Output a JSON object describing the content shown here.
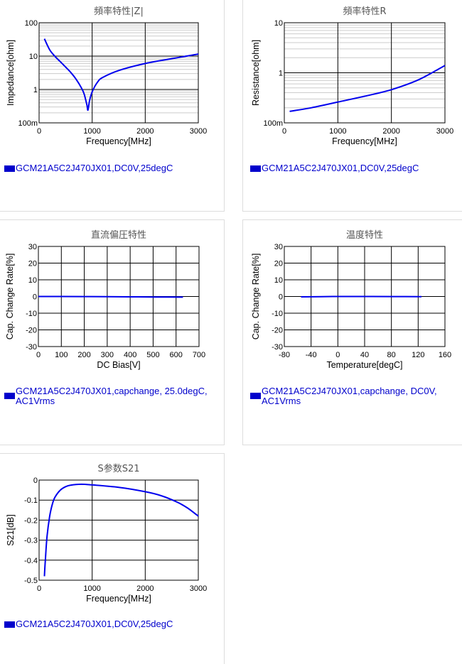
{
  "charts": [
    {
      "title": "頻率特性|Z|",
      "legend": "GCM21A5C2J470JX01,DC0V,25degC",
      "chart_data": {
        "type": "line",
        "log_y": true,
        "title": "頻率特性|Z|",
        "xlabel": "Frequency[MHz]",
        "ylabel": "Impedance[ohm]",
        "xlim": [
          0,
          3000
        ],
        "ylim": [
          0.1,
          100
        ],
        "xticks": [
          0,
          1000,
          2000,
          3000
        ],
        "xtick_labels": [
          "0",
          "1000",
          "2000",
          "3000"
        ],
        "yticks": [
          0.1,
          1,
          10,
          100
        ],
        "ytick_labels": [
          "100m",
          "1",
          "10",
          "100"
        ],
        "series": [
          {
            "name": "GCM21A5C2J470JX01,DC0V,25degC",
            "x": [
              100,
              200,
              300,
              400,
              500,
              600,
              700,
              800,
              850,
              900,
              920,
              950,
              1000,
              1100,
              1200,
              1500,
              2000,
              2500,
              3000
            ],
            "y": [
              33,
              15.5,
              9.8,
              6.8,
              4.7,
              3.2,
              2.0,
              1.1,
              0.72,
              0.35,
              0.24,
              0.45,
              0.85,
              1.65,
              2.3,
              3.7,
              6.0,
              8.4,
              11.5
            ]
          }
        ]
      }
    },
    {
      "title": "頻率特性R",
      "legend": "GCM21A5C2J470JX01,DC0V,25degC",
      "chart_data": {
        "type": "line",
        "log_y": true,
        "title": "頻率特性R",
        "xlabel": "Frequency[MHz]",
        "ylabel": "Resistance[ohm]",
        "xlim": [
          0,
          3000
        ],
        "ylim": [
          0.1,
          10
        ],
        "xticks": [
          0,
          1000,
          2000,
          3000
        ],
        "xtick_labels": [
          "0",
          "1000",
          "2000",
          "3000"
        ],
        "yticks": [
          0.1,
          1,
          10
        ],
        "ytick_labels": [
          "100m",
          "1",
          "10"
        ],
        "series": [
          {
            "name": "GCM21A5C2J470JX01,DC0V,25degC",
            "x": [
              100,
              500,
              1000,
              1500,
              2000,
              2500,
              3000
            ],
            "y": [
              0.17,
              0.2,
              0.26,
              0.34,
              0.46,
              0.72,
              1.4
            ]
          }
        ]
      }
    },
    {
      "title": "直流偏圧特性",
      "legend": "GCM21A5C2J470JX01,capchange, 25.0degC, AC1Vrms",
      "chart_data": {
        "type": "line",
        "log_y": false,
        "title": "直流偏圧特性",
        "xlabel": "DC Bias[V]",
        "ylabel": "Cap. Change Rate[%]",
        "xlim": [
          0,
          700
        ],
        "ylim": [
          -30,
          30
        ],
        "xticks": [
          0,
          100,
          200,
          300,
          400,
          500,
          600,
          700
        ],
        "xtick_labels": [
          "0",
          "100",
          "200",
          "300",
          "400",
          "500",
          "600",
          "700"
        ],
        "yticks": [
          -30,
          -20,
          -10,
          0,
          10,
          20,
          30
        ],
        "ytick_labels": [
          "-30",
          "-20",
          "-10",
          "0",
          "10",
          "20",
          "30"
        ],
        "series": [
          {
            "name": "GCM21A5C2J470JX01,capchange, 25.0degC, AC1Vrms",
            "x": [
              0,
              100,
              200,
              300,
              400,
              500,
              630
            ],
            "y": [
              0,
              0,
              -0.05,
              -0.1,
              -0.2,
              -0.3,
              -0.4
            ]
          }
        ]
      }
    },
    {
      "title": "温度特性",
      "legend": "GCM21A5C2J470JX01,capchange, DC0V, AC1Vrms",
      "chart_data": {
        "type": "line",
        "log_y": false,
        "title": "温度特性",
        "xlabel": "Temperature[degC]",
        "ylabel": "Cap. Change Rate[%]",
        "xlim": [
          -80,
          160
        ],
        "ylim": [
          -30,
          30
        ],
        "xticks": [
          -80,
          -40,
          0,
          40,
          80,
          120,
          160
        ],
        "xtick_labels": [
          "-80",
          "-40",
          "0",
          "40",
          "80",
          "120",
          "160"
        ],
        "yticks": [
          -30,
          -20,
          -10,
          0,
          10,
          20,
          30
        ],
        "ytick_labels": [
          "-30",
          "-20",
          "-10",
          "0",
          "10",
          "20",
          "30"
        ],
        "series": [
          {
            "name": "GCM21A5C2J470JX01,capchange, DC0V, AC1Vrms",
            "x": [
              -55,
              -25,
              0,
              25,
              50,
              85,
              125
            ],
            "y": [
              -0.2,
              -0.1,
              0,
              0,
              0,
              -0.05,
              -0.1
            ]
          }
        ]
      }
    },
    {
      "title": "S参数S21",
      "legend": "GCM21A5C2J470JX01,DC0V,25degC",
      "chart_data": {
        "type": "line",
        "log_y": false,
        "title": "S参数S21",
        "xlabel": "Frequency[MHz]",
        "ylabel": "S21[dB]",
        "xlim": [
          0,
          3000
        ],
        "ylim": [
          -0.5,
          0
        ],
        "xticks": [
          0,
          1000,
          2000,
          3000
        ],
        "xtick_labels": [
          "0",
          "1000",
          "2000",
          "3000"
        ],
        "yticks": [
          -0.5,
          -0.4,
          -0.3,
          -0.2,
          -0.1,
          0
        ],
        "ytick_labels": [
          "-0.5",
          "-0.4",
          "-0.3",
          "-0.2",
          "-0.1",
          "0"
        ],
        "series": [
          {
            "name": "GCM21A5C2J470JX01,DC0V,25degC",
            "x": [
              100,
              120,
              150,
              200,
              250,
              300,
              400,
              500,
              600,
              800,
              1000,
              1500,
              2000,
              2300,
              2600,
              2800,
              3000
            ],
            "y": [
              -0.48,
              -0.39,
              -0.28,
              -0.18,
              -0.12,
              -0.085,
              -0.05,
              -0.033,
              -0.025,
              -0.021,
              -0.024,
              -0.036,
              -0.058,
              -0.078,
              -0.11,
              -0.14,
              -0.18
            ]
          }
        ]
      }
    }
  ]
}
